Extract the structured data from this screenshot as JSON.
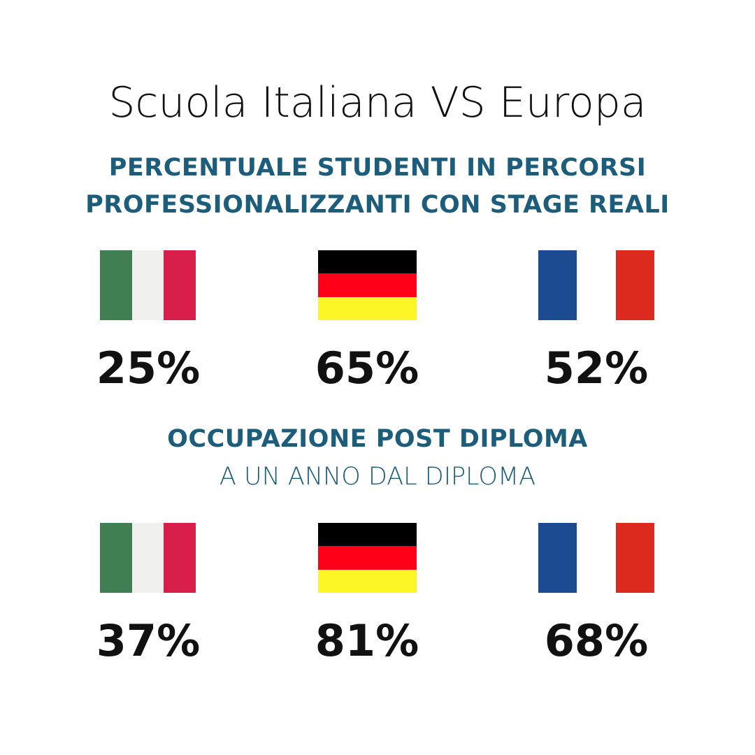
{
  "title": "Scuola Italiana VS Europa",
  "sections": [
    {
      "heading": [
        "PERCENTUALE STUDENTI IN PERCORSI",
        "PROFESSIONALIZZANTI CON STAGE REALI"
      ],
      "items": [
        "25%",
        "65%",
        "52%"
      ]
    },
    {
      "heading": [
        "OCCUPAZIONE POST DIPLOMA"
      ],
      "subheading": "A UN ANNO DAL DIPLOMA",
      "items": [
        "37%",
        "81%",
        "68%"
      ]
    }
  ]
}
